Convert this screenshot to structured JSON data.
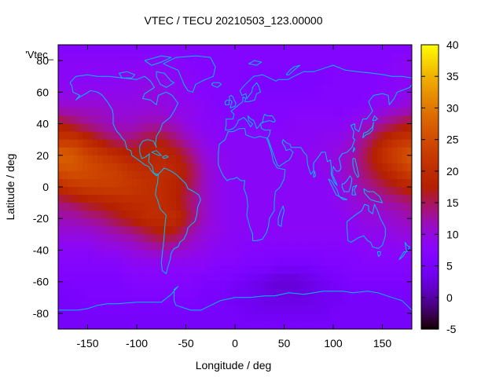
{
  "chart_data": {
    "type": "heatmap",
    "title": "VTEC / TECU 20210503_123.00000",
    "xlabel": "Longitude / deg",
    "ylabel": "Latitude / deg",
    "key_label": "'Vtec_",
    "xlim": [
      -180,
      180
    ],
    "ylim": [
      -90,
      90
    ],
    "xticks": [
      -150,
      -100,
      -50,
      0,
      50,
      100,
      150
    ],
    "yticks": [
      -80,
      -60,
      -40,
      -20,
      0,
      20,
      40,
      60,
      80
    ],
    "colorbar": {
      "range": [
        -5,
        40
      ],
      "ticks": [
        -5,
        0,
        5,
        10,
        15,
        20,
        25,
        30,
        35,
        40
      ],
      "palette": "black-blue-purple-red-orange-yellow"
    },
    "lon_grid": [
      -180,
      -165,
      -150,
      -135,
      -120,
      -105,
      -90,
      -75,
      -60,
      -45,
      -30,
      -15,
      0,
      15,
      30,
      45,
      60,
      75,
      90,
      105,
      120,
      135,
      150,
      165,
      180
    ],
    "lat_grid": [
      87.5,
      80,
      70,
      60,
      50,
      40,
      30,
      20,
      10,
      0,
      -10,
      -20,
      -30,
      -40,
      -50,
      -60,
      -70,
      -80,
      -87.5
    ],
    "vtec": [
      [
        7,
        7,
        7,
        7,
        7,
        7,
        7,
        7,
        7,
        7,
        7,
        7,
        7,
        7,
        7,
        7,
        7,
        7,
        7,
        7,
        7,
        7,
        7,
        7,
        7
      ],
      [
        8,
        8,
        8,
        8,
        8,
        8,
        8,
        8,
        8,
        7,
        7,
        7,
        7,
        7,
        7,
        7,
        7,
        7,
        7,
        7,
        7,
        7,
        7,
        8,
        8
      ],
      [
        8,
        8,
        8,
        8,
        8,
        9,
        9,
        9,
        8,
        8,
        7,
        7,
        7,
        6,
        6,
        6,
        6,
        6,
        6,
        7,
        7,
        7,
        7,
        8,
        8
      ],
      [
        9,
        9,
        9,
        9,
        9,
        9,
        10,
        10,
        9,
        8,
        7,
        7,
        7,
        6,
        6,
        6,
        6,
        6,
        7,
        7,
        7,
        7,
        8,
        8,
        9
      ],
      [
        11,
        11,
        11,
        11,
        10,
        10,
        10,
        10,
        9,
        9,
        8,
        7,
        7,
        7,
        7,
        7,
        7,
        7,
        7,
        7,
        7,
        8,
        9,
        10,
        11
      ],
      [
        17,
        15,
        13,
        12,
        11,
        11,
        12,
        12,
        11,
        9,
        8,
        8,
        7,
        7,
        7,
        7,
        8,
        8,
        8,
        8,
        9,
        11,
        13,
        15,
        17
      ],
      [
        22,
        22,
        19,
        16,
        14,
        14,
        16,
        17,
        14,
        11,
        9,
        8,
        8,
        8,
        8,
        8,
        8,
        8,
        9,
        9,
        11,
        14,
        18,
        21,
        22
      ],
      [
        28,
        27,
        24,
        22,
        20,
        18,
        18,
        19,
        18,
        14,
        10,
        9,
        8,
        8,
        8,
        8,
        8,
        9,
        9,
        10,
        12,
        16,
        21,
        24,
        27
      ],
      [
        25,
        26,
        25,
        24,
        23,
        21,
        20,
        20,
        19,
        16,
        11,
        9,
        8,
        8,
        8,
        8,
        8,
        8,
        9,
        10,
        12,
        15,
        18,
        21,
        24
      ],
      [
        20,
        22,
        23,
        23,
        23,
        22,
        21,
        20,
        18,
        15,
        11,
        9,
        8,
        8,
        8,
        8,
        8,
        8,
        8,
        9,
        11,
        13,
        15,
        17,
        19
      ],
      [
        14,
        15,
        17,
        18,
        19,
        20,
        20,
        20,
        18,
        14,
        11,
        9,
        8,
        8,
        8,
        8,
        8,
        8,
        8,
        9,
        10,
        11,
        12,
        13,
        14
      ],
      [
        12,
        12,
        13,
        14,
        16,
        18,
        20,
        20,
        20,
        15,
        11,
        9,
        8,
        8,
        8,
        8,
        8,
        8,
        8,
        8,
        9,
        10,
        10,
        11,
        12
      ],
      [
        10,
        10,
        10,
        11,
        12,
        13,
        15,
        17,
        16,
        12,
        10,
        9,
        8,
        8,
        8,
        8,
        8,
        8,
        8,
        8,
        8,
        9,
        9,
        10,
        10
      ],
      [
        8,
        8,
        8,
        9,
        9,
        10,
        11,
        12,
        11,
        10,
        9,
        8,
        8,
        7,
        7,
        7,
        7,
        7,
        7,
        7,
        7,
        8,
        8,
        8,
        8
      ],
      [
        7,
        7,
        7,
        7,
        7,
        8,
        8,
        8,
        8,
        8,
        8,
        7,
        7,
        6,
        6,
        5,
        5,
        5,
        6,
        6,
        7,
        7,
        7,
        7,
        7
      ],
      [
        6,
        6,
        6,
        6,
        6,
        7,
        7,
        7,
        7,
        7,
        6,
        6,
        5,
        4,
        3,
        2,
        2,
        3,
        4,
        5,
        6,
        6,
        6,
        6,
        6
      ],
      [
        5,
        5,
        6,
        6,
        6,
        6,
        6,
        6,
        6,
        6,
        5,
        5,
        4,
        4,
        3,
        3,
        3,
        3,
        4,
        4,
        5,
        5,
        5,
        5,
        5
      ],
      [
        5,
        5,
        5,
        5,
        5,
        5,
        5,
        5,
        5,
        5,
        5,
        5,
        5,
        4,
        4,
        4,
        4,
        4,
        4,
        5,
        5,
        5,
        5,
        5,
        5
      ],
      [
        5,
        5,
        5,
        5,
        5,
        5,
        5,
        5,
        5,
        5,
        5,
        5,
        5,
        5,
        5,
        5,
        5,
        5,
        5,
        5,
        5,
        5,
        5,
        5,
        5
      ]
    ],
    "coastline_color": "#00bfff",
    "grid": false,
    "legend": "top-left"
  }
}
